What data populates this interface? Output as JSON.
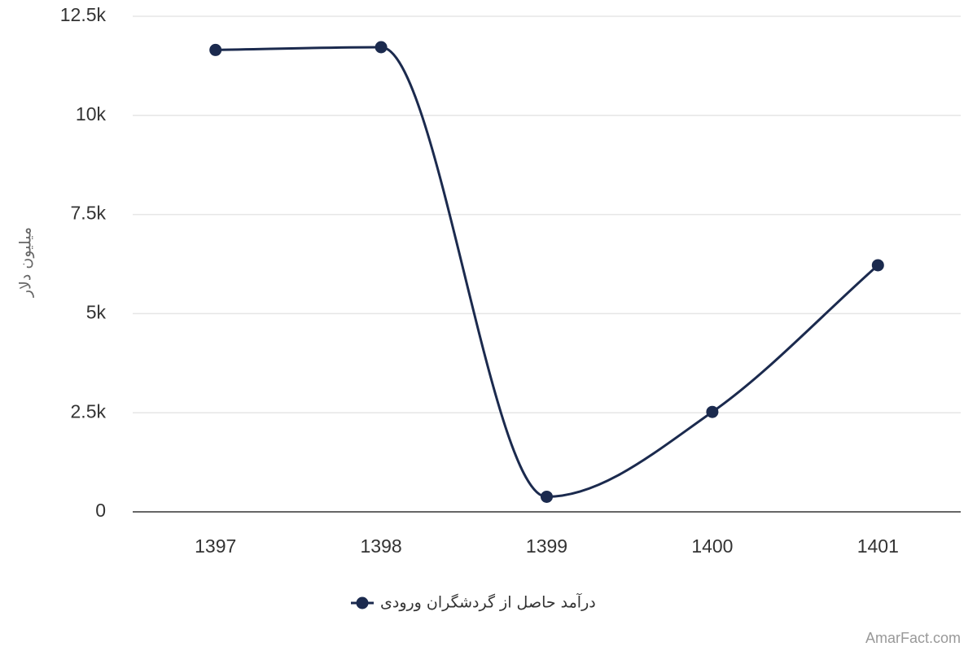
{
  "chart_data": {
    "type": "line",
    "categories": [
      "1397",
      "1398",
      "1399",
      "1400",
      "1401"
    ],
    "series": [
      {
        "name": "درآمد حاصل از گردشگران ورودی",
        "values": [
          11650,
          11720,
          380,
          2520,
          6220
        ],
        "color": "#1b2a4e"
      }
    ],
    "ylabel": "میلیون دلار",
    "ylim": [
      0,
      12500
    ],
    "yticks": [
      0,
      2500,
      5000,
      7500,
      10000,
      12500
    ],
    "ytick_labels": [
      "0",
      "2.5k",
      "5k",
      "7.5k",
      "10k",
      "12.5k"
    ],
    "grid": true,
    "legend": "bottom-center",
    "smooth": true
  },
  "credit": "AmarFact.com"
}
